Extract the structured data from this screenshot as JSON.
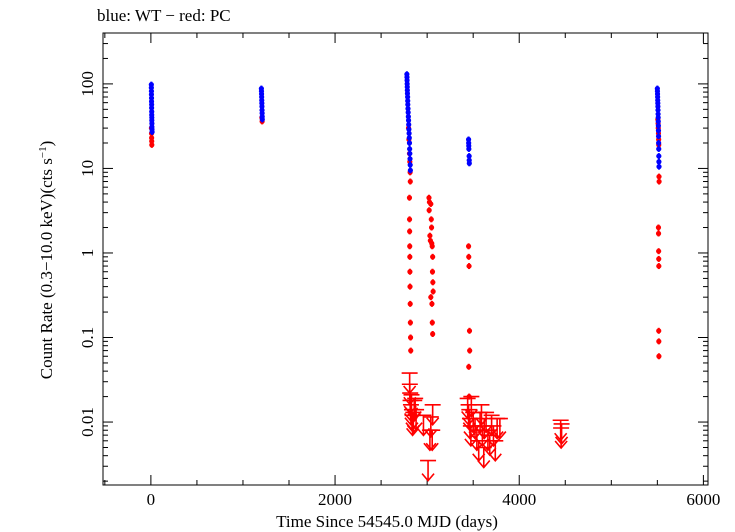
{
  "chart_data": {
    "type": "scatter",
    "title": "blue: WT − red: PC",
    "xlabel": "Time Since 54545.0 MJD (days)",
    "ylabel_main": "Count Rate (0.3−10.0 keV)(cts s",
    "ylabel_sup": "−1",
    "ylabel_close": ")",
    "x_scale": "linear",
    "y_scale": "log",
    "xlim": [
      -520,
      6050
    ],
    "ylim": [
      0.0018,
      400
    ],
    "x_ticks": [
      0,
      2000,
      4000,
      6000
    ],
    "x_tick_labels": [
      "0",
      "2000",
      "4000",
      "6000"
    ],
    "y_ticks": [
      0.01,
      0.1,
      1,
      10,
      100
    ],
    "y_tick_labels": [
      "0.01",
      "0.1",
      "1",
      "10",
      "100"
    ],
    "grid": false,
    "legend": "none",
    "series": [
      {
        "name": "WT",
        "color": "#0000ff",
        "marker": "point",
        "points": [
          [
            5,
            98
          ],
          [
            5,
            90
          ],
          [
            6,
            82
          ],
          [
            6,
            75
          ],
          [
            7,
            68
          ],
          [
            7,
            62
          ],
          [
            8,
            57
          ],
          [
            8,
            52
          ],
          [
            9,
            47
          ],
          [
            9,
            43
          ],
          [
            10,
            40
          ],
          [
            10,
            37
          ],
          [
            11,
            34
          ],
          [
            11,
            31
          ],
          [
            12,
            29
          ],
          [
            13,
            27
          ],
          [
            1200,
            88
          ],
          [
            1201,
            82
          ],
          [
            1202,
            76
          ],
          [
            1203,
            70
          ],
          [
            1204,
            64
          ],
          [
            1205,
            59
          ],
          [
            1206,
            54
          ],
          [
            1207,
            49
          ],
          [
            1208,
            45
          ],
          [
            1209,
            41
          ],
          [
            1210,
            38
          ],
          [
            2780,
            130
          ],
          [
            2781,
            120
          ],
          [
            2782,
            110
          ],
          [
            2783,
            100
          ],
          [
            2784,
            92
          ],
          [
            2785,
            84
          ],
          [
            2786,
            77
          ],
          [
            2788,
            70
          ],
          [
            2789,
            63
          ],
          [
            2790,
            57
          ],
          [
            2792,
            51
          ],
          [
            2794,
            46
          ],
          [
            2796,
            41
          ],
          [
            2798,
            37
          ],
          [
            2800,
            33
          ],
          [
            2802,
            29
          ],
          [
            2804,
            26
          ],
          [
            2806,
            23
          ],
          [
            2808,
            20
          ],
          [
            2810,
            17
          ],
          [
            2812,
            15
          ],
          [
            2814,
            13
          ],
          [
            2816,
            11
          ],
          [
            2818,
            9.5
          ],
          [
            3450,
            22
          ],
          [
            3451,
            20
          ],
          [
            3452,
            18.5
          ],
          [
            3453,
            17
          ],
          [
            3456,
            14
          ],
          [
            3457,
            12.5
          ],
          [
            3458,
            11.5
          ],
          [
            5500,
            88
          ],
          [
            5501,
            82
          ],
          [
            5502,
            76
          ],
          [
            5503,
            70
          ],
          [
            5504,
            64
          ],
          [
            5505,
            59
          ],
          [
            5506,
            54
          ],
          [
            5507,
            49
          ],
          [
            5508,
            44
          ],
          [
            5509,
            40
          ],
          [
            5510,
            36
          ],
          [
            5511,
            32
          ],
          [
            5512,
            28
          ],
          [
            5513,
            24
          ],
          [
            5514,
            20
          ],
          [
            5515,
            17
          ],
          [
            5516,
            14
          ],
          [
            5517,
            12
          ],
          [
            5518,
            10.5
          ]
        ]
      },
      {
        "name": "PC",
        "color": "#ff0000",
        "marker": "point",
        "points": [
          [
            6,
            30
          ],
          [
            7,
            26
          ],
          [
            8,
            23
          ],
          [
            9,
            21
          ],
          [
            10,
            19
          ],
          [
            1205,
            40
          ],
          [
            1208,
            36
          ],
          [
            2798,
            30
          ],
          [
            2802,
            22
          ],
          [
            2808,
            15
          ],
          [
            2812,
            12
          ],
          [
            2815,
            9
          ],
          [
            2817,
            7
          ],
          [
            2808,
            4.5
          ],
          [
            2809,
            2.5
          ],
          [
            2810,
            1.8
          ],
          [
            2811,
            1.2
          ],
          [
            2812,
            0.9
          ],
          [
            2813,
            0.6
          ],
          [
            2814,
            0.4
          ],
          [
            2816,
            0.25
          ],
          [
            2818,
            0.15
          ],
          [
            2820,
            0.1
          ],
          [
            2822,
            0.07
          ],
          [
            3020,
            4.5
          ],
          [
            3025,
            4.0
          ],
          [
            3022,
            3.2
          ],
          [
            3040,
            3.8
          ],
          [
            3045,
            2.5
          ],
          [
            3048,
            2.0
          ],
          [
            3030,
            1.6
          ],
          [
            3035,
            1.4
          ],
          [
            3050,
            1.3
          ],
          [
            3055,
            1.2
          ],
          [
            3060,
            0.9
          ],
          [
            3058,
            0.6
          ],
          [
            3062,
            0.45
          ],
          [
            3065,
            0.35
          ],
          [
            3040,
            0.3
          ],
          [
            3052,
            0.25
          ],
          [
            3056,
            0.15
          ],
          [
            3060,
            0.11
          ],
          [
            3450,
            1.2
          ],
          [
            3452,
            0.9
          ],
          [
            3455,
            0.7
          ],
          [
            3460,
            0.12
          ],
          [
            3462,
            0.07
          ],
          [
            3452,
            0.045
          ],
          [
            3456,
            0.02
          ],
          [
            5505,
            38
          ],
          [
            5508,
            34
          ],
          [
            5510,
            30
          ],
          [
            5512,
            26
          ],
          [
            5514,
            22
          ],
          [
            5515,
            19
          ],
          [
            5518,
            8
          ],
          [
            5519,
            7
          ],
          [
            5512,
            2
          ],
          [
            5513,
            1.7
          ],
          [
            5514,
            1.05
          ],
          [
            5515,
            0.85
          ],
          [
            5516,
            0.7
          ],
          [
            5515,
            0.12
          ],
          [
            5516,
            0.09
          ],
          [
            5517,
            0.06
          ]
        ],
        "upper_limits": [
          [
            2810,
            0.038
          ],
          [
            2812,
            0.028
          ],
          [
            2816,
            0.022
          ],
          [
            2820,
            0.018
          ],
          [
            2824,
            0.016
          ],
          [
            2830,
            0.021
          ],
          [
            2835,
            0.014
          ],
          [
            2842,
            0.012
          ],
          [
            2850,
            0.013
          ],
          [
            2860,
            0.018
          ],
          [
            2870,
            0.019
          ],
          [
            2880,
            0.014
          ],
          [
            2960,
            0.012
          ],
          [
            3010,
            0.0035
          ],
          [
            3030,
            0.008
          ],
          [
            3040,
            0.0115
          ],
          [
            3055,
            0.008
          ],
          [
            3060,
            0.016
          ],
          [
            3440,
            0.019
          ],
          [
            3450,
            0.016
          ],
          [
            3458,
            0.014
          ],
          [
            3465,
            0.011
          ],
          [
            3475,
            0.009
          ],
          [
            3480,
            0.02
          ],
          [
            3500,
            0.013
          ],
          [
            3520,
            0.011
          ],
          [
            3540,
            0.008
          ],
          [
            3560,
            0.006
          ],
          [
            3575,
            0.013
          ],
          [
            3590,
            0.016
          ],
          [
            3600,
            0.009
          ],
          [
            3615,
            0.005
          ],
          [
            3620,
            0.011
          ],
          [
            3640,
            0.013
          ],
          [
            3660,
            0.008
          ],
          [
            3680,
            0.007
          ],
          [
            3700,
            0.012
          ],
          [
            3720,
            0.009
          ],
          [
            3740,
            0.006
          ],
          [
            3760,
            0.011
          ],
          [
            3790,
            0.011
          ],
          [
            4450,
            0.0105
          ],
          [
            4460,
            0.0095
          ],
          [
            4455,
            0.0085
          ]
        ]
      }
    ]
  }
}
